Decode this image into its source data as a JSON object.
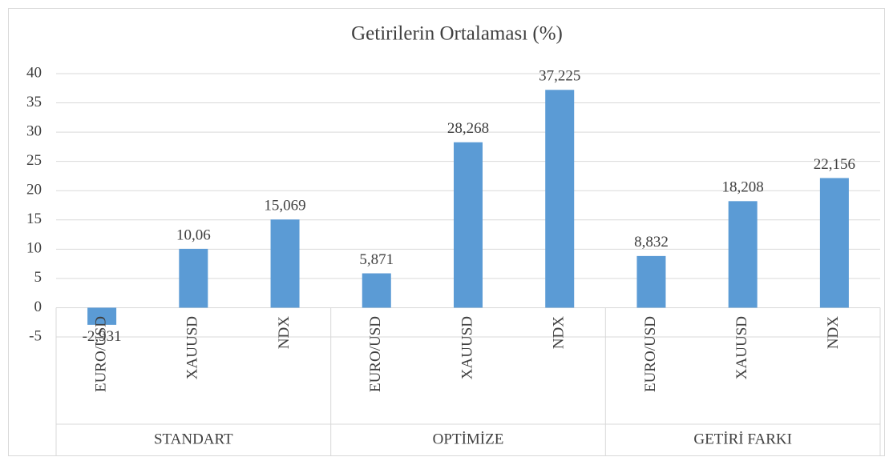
{
  "chart_data": {
    "type": "bar",
    "title": "Getirilerin Ortalaması (%)",
    "categories": [
      "EURO/USD",
      "XAUUSD",
      "NDX",
      "EURO/USD",
      "XAUUSD",
      "NDX",
      "EURO/USD",
      "XAUUSD",
      "NDX"
    ],
    "groups": [
      "STANDART",
      "OPTİMİZE",
      "GETİRİ FARKI"
    ],
    "values": [
      -2.931,
      10.06,
      15.069,
      5.871,
      28.268,
      37.225,
      8.832,
      18.208,
      22.156
    ],
    "value_labels": [
      "-2,931",
      "10,06",
      "15,069",
      "5,871",
      "28,268",
      "37,225",
      "8,832",
      "18,208",
      "22,156"
    ],
    "color": "#5b9bd5",
    "ylim": [
      -5,
      40
    ],
    "yticks": [
      -5,
      0,
      5,
      10,
      15,
      20,
      25,
      30,
      35,
      40
    ],
    "grid": true
  }
}
